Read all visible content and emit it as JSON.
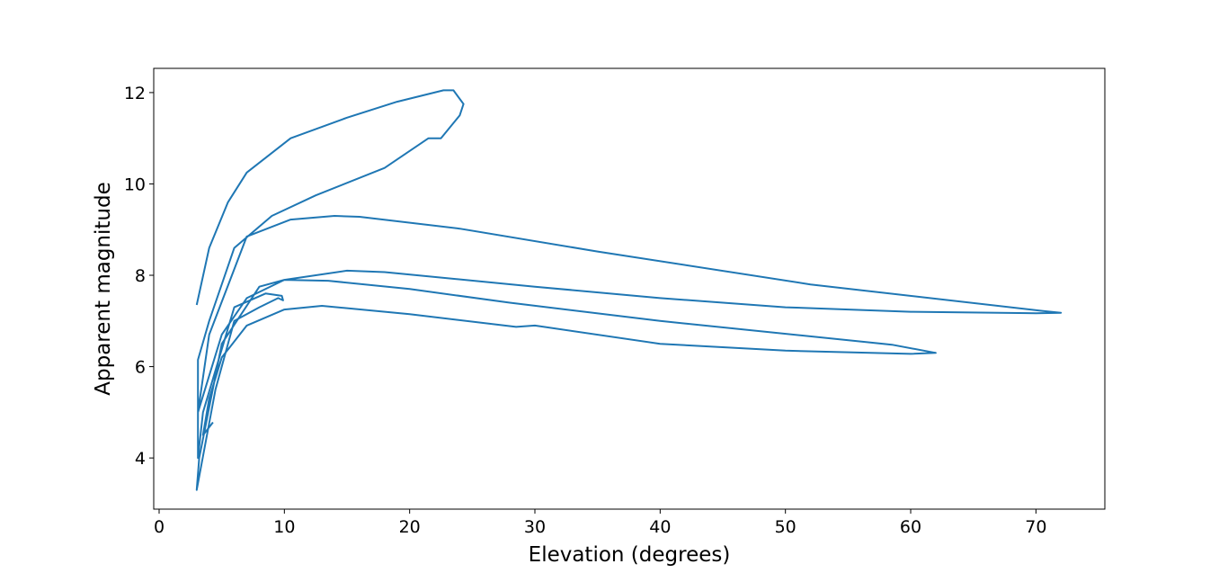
{
  "chart_data": {
    "type": "line",
    "x_label": "Elevation (degrees)",
    "y_label": "Apparent magnitude",
    "color": "#1f77b4",
    "xlim": [
      -0.43,
      75.5
    ],
    "ylim": [
      2.88,
      12.53
    ],
    "xticks": [
      0,
      10,
      20,
      30,
      40,
      50,
      60,
      70
    ],
    "yticks": [
      4,
      6,
      8,
      10,
      12
    ],
    "x": [
      3.0,
      4.0,
      5.5,
      7.0,
      10.5,
      15.0,
      19.0,
      22.7,
      23.5,
      24.3,
      24.0,
      22.5,
      21.5,
      18.0,
      12.5,
      9.0,
      6.0,
      4.0,
      3.1,
      3.1,
      3.1,
      4.0,
      7.0,
      10.5,
      14.0,
      16.0,
      24.0,
      35.0,
      52.0,
      70.5,
      72.0,
      70.0,
      60.0,
      50.0,
      40.0,
      30.0,
      18.0,
      15.0,
      10.0,
      7.0,
      5.0,
      3.1,
      3.1,
      3.5,
      6.0,
      8.5,
      9.8,
      9.9,
      9.5,
      8.0,
      6.0,
      4.5,
      3.0,
      3.2,
      5.0,
      8.0,
      10.0,
      13.5,
      20.0,
      28.0,
      40.0,
      58.5,
      62.0,
      60.0,
      50.0,
      40.0,
      30.0,
      28.5,
      20.0,
      13.0,
      10.0,
      7.0,
      5.0,
      4.0,
      3.5,
      4.3
    ],
    "values": [
      7.35,
      8.6,
      9.6,
      10.25,
      11.0,
      11.45,
      11.8,
      12.05,
      12.05,
      11.75,
      11.5,
      11.0,
      11.0,
      10.35,
      9.75,
      9.3,
      8.6,
      7.0,
      6.15,
      4.5,
      5.0,
      6.7,
      8.85,
      9.22,
      9.3,
      9.28,
      9.02,
      8.52,
      7.8,
      7.22,
      7.18,
      7.17,
      7.2,
      7.3,
      7.5,
      7.75,
      8.07,
      8.1,
      7.9,
      7.5,
      6.7,
      5.0,
      4.0,
      5.0,
      7.3,
      7.6,
      7.55,
      7.45,
      7.5,
      7.3,
      7.0,
      5.5,
      3.3,
      4.0,
      6.5,
      7.75,
      7.9,
      7.88,
      7.7,
      7.4,
      7.0,
      6.48,
      6.3,
      6.28,
      6.35,
      6.5,
      6.9,
      6.87,
      7.15,
      7.33,
      7.25,
      6.9,
      6.2,
      5.3,
      4.5,
      4.78
    ]
  }
}
